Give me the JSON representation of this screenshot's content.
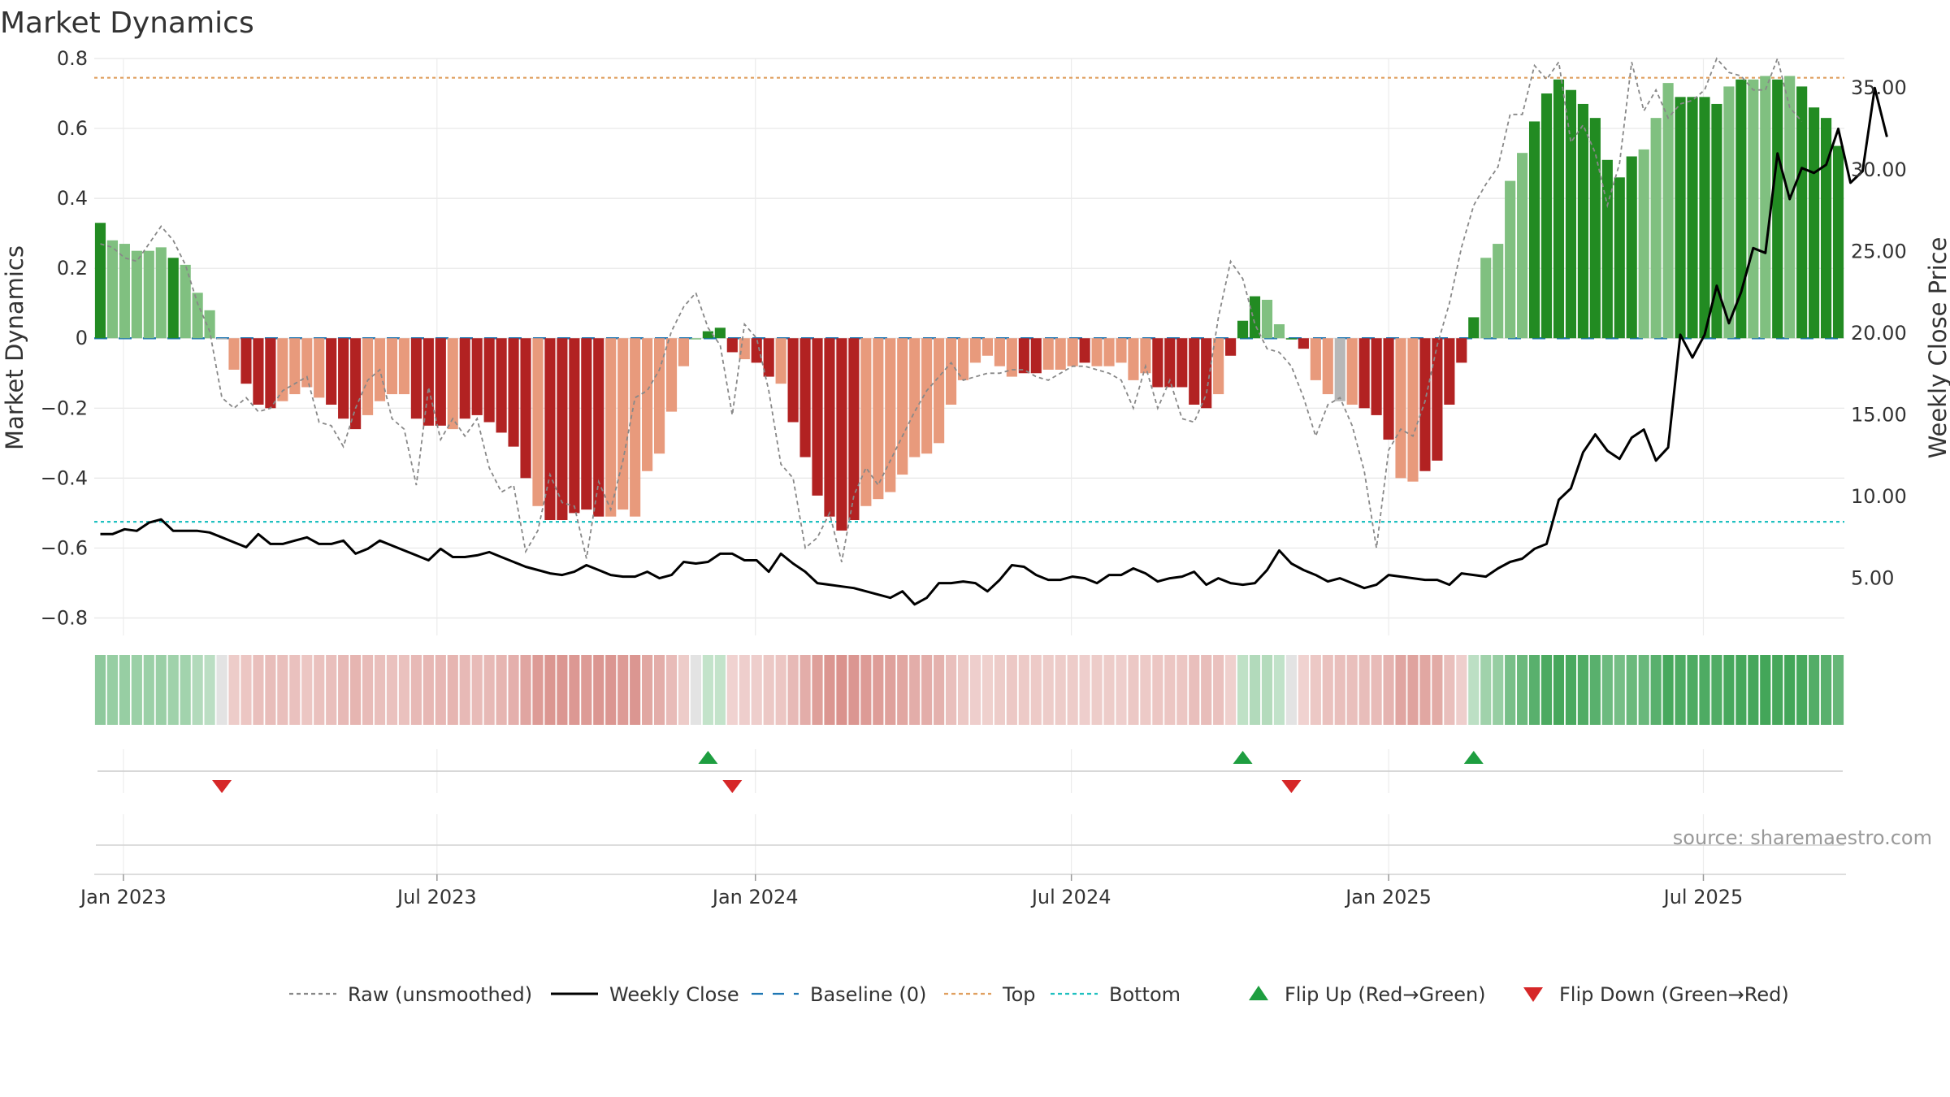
{
  "chart_data": {
    "type": "bar",
    "title": "Market Dynamics",
    "ylabel_left": "Market Dynamics",
    "ylabel_right": "Weekly Close Price",
    "ylim_left": [
      -0.85,
      0.8
    ],
    "ylim_right": [
      1.5,
      36.8
    ],
    "left_ticks": [
      -0.8,
      -0.6,
      -0.4,
      -0.2,
      0,
      0.2,
      0.4,
      0.6,
      0.8
    ],
    "left_tick_labels": [
      "−0.8",
      "−0.6",
      "−0.4",
      "−0.2",
      "0",
      "0.2",
      "0.4",
      "0.6",
      "0.8"
    ],
    "right_ticks": [
      5,
      10,
      15,
      20,
      25,
      30,
      35
    ],
    "right_tick_labels": [
      "5.00",
      "10.00",
      "15.00",
      "20.00",
      "25.00",
      "30.00",
      "35.00"
    ],
    "x_tick_labels": [
      "Jan 2023",
      "Jul 2023",
      "Jan 2024",
      "Jul 2024",
      "Jan 2025",
      "Jul 2025"
    ],
    "x_tick_weeks": [
      1.9,
      27.7,
      53.9,
      79.9,
      106.0,
      131.9
    ],
    "grid": true,
    "top_level": 0.745,
    "bottom_level": -0.525,
    "baseline": 0,
    "smoothed_values": [
      0.33,
      0.28,
      0.27,
      0.25,
      0.25,
      0.26,
      0.23,
      0.21,
      0.13,
      0.08,
      0,
      -0.09,
      -0.13,
      -0.19,
      -0.2,
      -0.18,
      -0.16,
      -0.14,
      -0.17,
      -0.19,
      -0.23,
      -0.26,
      -0.22,
      -0.18,
      -0.16,
      -0.16,
      -0.23,
      -0.25,
      -0.25,
      -0.26,
      -0.23,
      -0.22,
      -0.24,
      -0.27,
      -0.31,
      -0.4,
      -0.48,
      -0.52,
      -0.52,
      -0.5,
      -0.49,
      -0.51,
      -0.51,
      -0.49,
      -0.51,
      -0.38,
      -0.33,
      -0.21,
      -0.08,
      0,
      0.02,
      0.03,
      -0.04,
      -0.06,
      -0.07,
      -0.11,
      -0.13,
      -0.24,
      -0.34,
      -0.45,
      -0.51,
      -0.55,
      -0.52,
      -0.48,
      -0.46,
      -0.44,
      -0.39,
      -0.34,
      -0.33,
      -0.3,
      -0.19,
      -0.12,
      -0.07,
      -0.05,
      -0.08,
      -0.11,
      -0.1,
      -0.1,
      -0.09,
      -0.09,
      -0.08,
      -0.07,
      -0.08,
      -0.08,
      -0.07,
      -0.12,
      -0.1,
      -0.14,
      -0.14,
      -0.14,
      -0.19,
      -0.2,
      -0.16,
      -0.05,
      0.05,
      0.12,
      0.11,
      0.04,
      0,
      -0.03,
      -0.12,
      -0.16,
      -0.18,
      -0.19,
      -0.2,
      -0.22,
      -0.29,
      -0.4,
      -0.41,
      -0.38,
      -0.35,
      -0.19,
      -0.07,
      0.06,
      0.23,
      0.27,
      0.45,
      0.53,
      0.62,
      0.7,
      0.74,
      0.71,
      0.67,
      0.63,
      0.51,
      0.46,
      0.52,
      0.54,
      0.63,
      0.73,
      0.69,
      0.69,
      0.69,
      0.67,
      0.72,
      0.74,
      0.74,
      0.75,
      0.74,
      0.75,
      0.72,
      0.66,
      0.63,
      0.55
    ],
    "color_codes": "DLLLLLDLLLNLDDDLLLLDDDLLLLDDDLDDDDDDLDDDDDLLLLLLLLUUDLDDLDDDDDDLLLLLLLLLLLLLDDLLLDLLLLLDDDDDLDDDLLUULLNLDDDLLDDDDDLLLLUUUUUUUUULLLUUUULULLULUUUUUULLLL",
    "raw_values": [
      0.27,
      0.26,
      0.23,
      0.22,
      0.27,
      0.32,
      0.28,
      0.21,
      0.1,
      0.02,
      -0.17,
      -0.2,
      -0.17,
      -0.21,
      -0.2,
      -0.15,
      -0.13,
      -0.11,
      -0.24,
      -0.25,
      -0.31,
      -0.2,
      -0.12,
      -0.09,
      -0.23,
      -0.26,
      -0.42,
      -0.14,
      -0.29,
      -0.23,
      -0.28,
      -0.23,
      -0.37,
      -0.44,
      -0.42,
      -0.61,
      -0.55,
      -0.39,
      -0.47,
      -0.48,
      -0.63,
      -0.41,
      -0.49,
      -0.35,
      -0.17,
      -0.15,
      -0.09,
      0.02,
      0.09,
      0.13,
      0.03,
      -0.02,
      -0.22,
      0.04,
      0,
      -0.15,
      -0.36,
      -0.4,
      -0.6,
      -0.57,
      -0.5,
      -0.64,
      -0.45,
      -0.37,
      -0.42,
      -0.35,
      -0.28,
      -0.21,
      -0.15,
      -0.11,
      -0.07,
      -0.12,
      -0.11,
      -0.1,
      -0.1,
      -0.09,
      -0.09,
      -0.11,
      -0.12,
      -0.1,
      -0.08,
      -0.08,
      -0.09,
      -0.1,
      -0.12,
      -0.2,
      -0.08,
      -0.2,
      -0.12,
      -0.23,
      -0.24,
      -0.16,
      0.06,
      0.22,
      0.17,
      0.04,
      -0.03,
      -0.04,
      -0.08,
      -0.17,
      -0.28,
      -0.19,
      -0.17,
      -0.25,
      -0.38,
      -0.6,
      -0.32,
      -0.26,
      -0.28,
      -0.18,
      -0.02,
      0.1,
      0.26,
      0.38,
      0.44,
      0.49,
      0.64,
      0.64,
      0.78,
      0.74,
      0.79,
      0.56,
      0.61,
      0.53,
      0.38,
      0.5,
      0.79,
      0.65,
      0.71,
      0.63,
      0.67,
      0.68,
      0.71,
      0.8,
      0.76,
      0.75,
      0.71,
      0.71,
      0.8,
      0.66,
      0.62
    ]
  },
  "weekly_close": [
    7.7,
    7.7,
    8,
    7.9,
    8.4,
    8.6,
    7.9,
    7.9,
    7.9,
    7.8,
    7.5,
    7.2,
    6.9,
    7.7,
    7.1,
    7.1,
    7.3,
    7.5,
    7.1,
    7.1,
    7.3,
    6.5,
    6.8,
    7.3,
    7,
    6.7,
    6.4,
    6.1,
    6.8,
    6.3,
    6.3,
    6.4,
    6.6,
    6.3,
    6,
    5.7,
    5.5,
    5.3,
    5.2,
    5.4,
    5.8,
    5.5,
    5.2,
    5.1,
    5.1,
    5.4,
    5,
    5.2,
    6,
    5.9,
    6,
    6.5,
    6.5,
    6.1,
    6.1,
    5.4,
    6.5,
    5.9,
    5.4,
    4.7,
    4.6,
    4.5,
    4.4,
    4.2,
    4,
    3.8,
    4.2,
    3.4,
    3.8,
    4.7,
    4.7,
    4.8,
    4.7,
    4.2,
    4.9,
    5.8,
    5.7,
    5.2,
    4.9,
    4.9,
    5.1,
    5,
    4.7,
    5.2,
    5.2,
    5.6,
    5.3,
    4.8,
    5,
    5.1,
    5.4,
    4.6,
    5,
    4.7,
    4.6,
    4.7,
    5.5,
    6.7,
    5.9,
    5.5,
    5.2,
    4.8,
    5,
    4.7,
    4.4,
    4.6,
    5.2,
    5.1,
    5,
    4.9,
    4.9,
    4.6,
    5.3,
    5.2,
    5.1,
    5.6,
    6,
    6.2,
    6.8,
    7.1,
    9.8,
    10.5,
    12.7,
    13.8,
    12.8,
    12.3,
    13.6,
    14.1,
    12.2,
    13,
    19.9,
    18.5,
    19.9,
    22.9,
    20.6,
    22.5,
    25.2,
    24.9,
    31,
    28.2,
    30.1,
    29.8,
    30.3,
    32.5,
    29.2,
    29.9,
    35,
    32
  ],
  "legend": {
    "items": [
      {
        "label": "Raw (unsmoothed)",
        "swatch": "dashed-line",
        "color": "#888888"
      },
      {
        "label": "Weekly Close",
        "swatch": "solid-line",
        "color": "#000000"
      },
      {
        "label": "Baseline (0)",
        "swatch": "long-dash-line",
        "color": "#1f77b4"
      },
      {
        "label": "Top",
        "swatch": "dashed-line",
        "color": "#e0a060"
      },
      {
        "label": "Bottom",
        "swatch": "dashed-line",
        "color": "#20c0c0"
      },
      {
        "label": "Flip Up (Red→Green)",
        "swatch": "up-triangle",
        "color": "#1e9e40"
      },
      {
        "label": "Flip Down (Green→Red)",
        "swatch": "down-triangle",
        "color": "#d62728"
      }
    ]
  },
  "flips": {
    "up_weeks": [
      50,
      94,
      113
    ],
    "down_weeks": [
      10,
      52,
      98
    ]
  },
  "source_text": "source: sharemaestro.com",
  "colors": {
    "dark_green": "#228b22",
    "light_green": "#80c080",
    "dark_red": "#b22222",
    "light_red": "#e89a7c",
    "neutral": "#b7b7b7",
    "top_line": "#e0a060",
    "bottom_line": "#20c0c0",
    "baseline": "#1f77b4",
    "raw_line": "#888888",
    "close_line": "#000000"
  }
}
